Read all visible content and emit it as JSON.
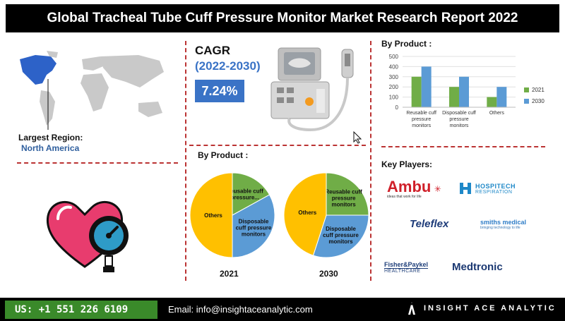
{
  "header": {
    "title": "Global Tracheal Tube Cuff Pressure Monitor Market Research Report 2022"
  },
  "region": {
    "label": "Largest Region:",
    "value": "North America"
  },
  "cagr": {
    "title": "CAGR",
    "period": "(2022-2030)",
    "value": "7.24%"
  },
  "pie_section": {
    "title": "By Product :"
  },
  "bar_section": {
    "title": "By Product :"
  },
  "key_players": {
    "title": "Key Players:",
    "ambu": {
      "name": "Ambu",
      "tagline": "ideas that work for life"
    },
    "hospitech": {
      "line1": "HOSPITECH",
      "line2": "RESPIRATION"
    },
    "teleflex": "Teleflex",
    "smiths": {
      "line1": "smiths medical",
      "line2": "bringing technology to life"
    },
    "fisher": {
      "line1": "Fisher&Paykel",
      "line2": "HEALTHCARE"
    },
    "medtronic": "Medtronic"
  },
  "footer": {
    "phone": "US: +1 551 226 6109",
    "email": "Email: info@insightaceanalytic.com",
    "brand": "INSIGHT ACE ANALYTIC"
  },
  "colors": {
    "green": "#70ad47",
    "blue": "#5b9bd5",
    "yellow": "#ffc000",
    "header_bg": "#000000",
    "cagr_blue": "#3a73c6",
    "phone_green": "#3a8a2a",
    "separator": "#bb3333"
  },
  "chart_data": [
    {
      "type": "pie",
      "title": "By Product :",
      "year_label": "2021",
      "slices": [
        {
          "label": "Reusable cuff pressure...",
          "value": 17,
          "color": "#70ad47"
        },
        {
          "label": "Disposable cuff pressure monitors",
          "value": 33,
          "color": "#5b9bd5"
        },
        {
          "label": "Others",
          "value": 50,
          "color": "#ffc000"
        }
      ]
    },
    {
      "type": "pie",
      "title": "By Product :",
      "year_label": "2030",
      "slices": [
        {
          "label": "Reusable cuff pressure monitors",
          "value": 25,
          "color": "#70ad47"
        },
        {
          "label": "Disposable cuff pressure monitors",
          "value": 30,
          "color": "#5b9bd5"
        },
        {
          "label": "Others",
          "value": 45,
          "color": "#ffc000"
        }
      ]
    },
    {
      "type": "bar",
      "title": "By Product :",
      "categories": [
        "Reusable cuff pressure monitors",
        "Disposable cuff pressure monitors",
        "Others"
      ],
      "category_lines": [
        [
          "Reusable cuff",
          "pressure",
          "monitors"
        ],
        [
          "Disposable cuff",
          "pressure",
          "monitors"
        ],
        [
          "Others"
        ]
      ],
      "series": [
        {
          "name": "2021",
          "values": [
            300,
            200,
            100
          ],
          "color": "#70ad47"
        },
        {
          "name": "2030",
          "values": [
            400,
            300,
            200
          ],
          "color": "#5b9bd5"
        }
      ],
      "yticks": [
        0,
        100,
        200,
        300,
        400,
        500
      ],
      "ylim": [
        0,
        500
      ],
      "legend": "right",
      "grid": true
    }
  ]
}
